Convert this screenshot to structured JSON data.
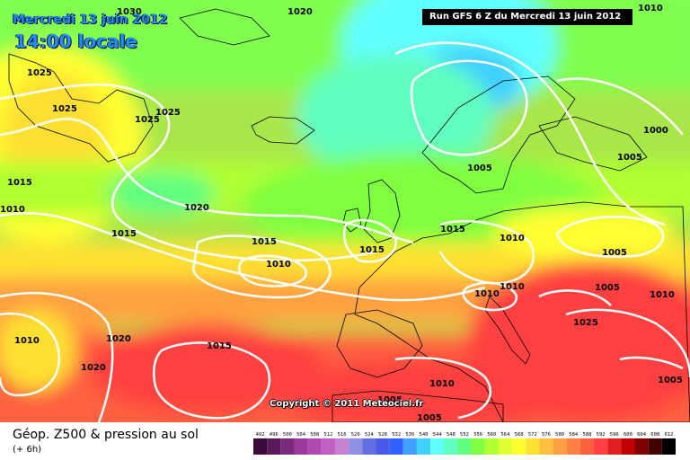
{
  "header": {
    "date": "Mercredi 13 juin 2012",
    "time": "14:00 locale",
    "run": "Run GFS 6 Z du Mercredi 13 juin 2012"
  },
  "copyright": "Copyright © 2011 Meteociel.fr",
  "footer": {
    "title": "Géop. Z500 & pression au sol",
    "subtitle": "(+ 6h)"
  },
  "legend": {
    "values": [
      "492",
      "496",
      "500",
      "504",
      "508",
      "512",
      "516",
      "520",
      "524",
      "528",
      "532",
      "536",
      "540",
      "544",
      "548",
      "552",
      "556",
      "560",
      "564",
      "568",
      "572",
      "576",
      "580",
      "584",
      "588",
      "592",
      "596",
      "600",
      "604",
      "608",
      "612"
    ],
    "colors": [
      "#3a0a3a",
      "#5a1a5a",
      "#7a2a7a",
      "#9a3a9a",
      "#b04ab0",
      "#c060c0",
      "#c880d0",
      "#9090e0",
      "#6070e0",
      "#4a5ae8",
      "#3060ff",
      "#40a0ff",
      "#40d0ff",
      "#60ffff",
      "#60ffc0",
      "#60ff80",
      "#80ff40",
      "#b0ff30",
      "#e0ff30",
      "#ffff30",
      "#ffe030",
      "#ffc040",
      "#ffa040",
      "#ff8040",
      "#ff6040",
      "#ff4040",
      "#e02020",
      "#c00000",
      "#800000",
      "#400000",
      "#000000"
    ]
  },
  "isobars": [
    "1025",
    "1030",
    "1020",
    "1020",
    "1025",
    "1025",
    "1025",
    "1015",
    "1010",
    "1020",
    "1015",
    "1015",
    "1010",
    "1015",
    "1015",
    "1010",
    "1005",
    "1000",
    "1005",
    "1005",
    "1010",
    "1010",
    "1005",
    "1010",
    "1010",
    "1020",
    "1015",
    "1025",
    "1005",
    "1010",
    "1005",
    "1005",
    "1010"
  ]
}
